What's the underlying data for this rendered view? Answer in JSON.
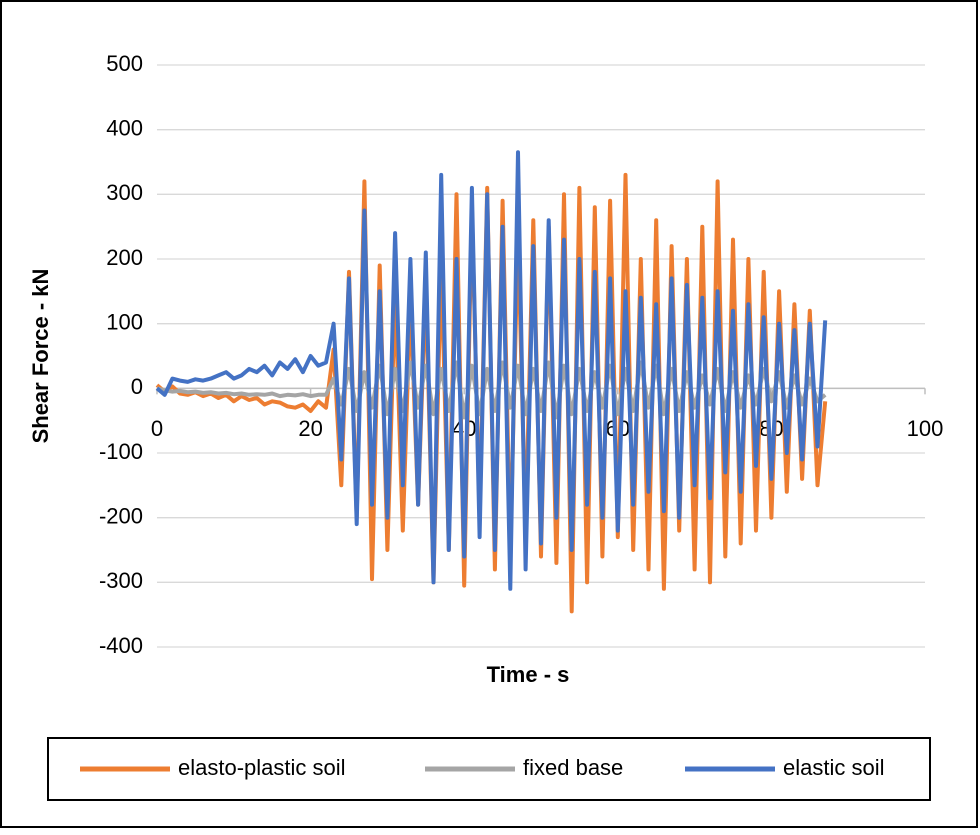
{
  "chart_data": {
    "type": "line",
    "ylabel": "Shear Force - kN",
    "xlabel": "Time - s",
    "xlim": [
      0,
      100
    ],
    "xticks": [
      0,
      20,
      40,
      60,
      80,
      100
    ],
    "ylim": [
      -400,
      500
    ],
    "yticks": [
      -400,
      -300,
      -200,
      -100,
      0,
      100,
      200,
      300,
      400,
      500
    ],
    "grid": true,
    "legend": "bottom",
    "x": [
      0,
      1,
      2,
      3,
      4,
      5,
      6,
      7,
      8,
      9,
      10,
      11,
      12,
      13,
      14,
      15,
      16,
      17,
      18,
      19,
      20,
      21,
      22,
      23,
      24,
      25,
      26,
      27,
      28,
      29,
      30,
      31,
      32,
      33,
      34,
      35,
      36,
      37,
      38,
      39,
      40,
      41,
      42,
      43,
      44,
      45,
      46,
      47,
      48,
      49,
      50,
      51,
      52,
      53,
      54,
      55,
      56,
      57,
      58,
      59,
      60,
      61,
      62,
      63,
      64,
      65,
      66,
      67,
      68,
      69,
      70,
      71,
      72,
      73,
      74,
      75,
      76,
      77,
      78,
      79,
      80,
      81,
      82,
      83,
      84,
      85,
      86,
      87
    ],
    "series": [
      {
        "name": "elasto-plastic soil",
        "color": "#ed7d31",
        "values": [
          5,
          -5,
          3,
          -8,
          -10,
          -6,
          -12,
          -8,
          -15,
          -10,
          -20,
          -12,
          -18,
          -15,
          -25,
          -20,
          -22,
          -28,
          -30,
          -25,
          -35,
          -20,
          -30,
          60,
          -150,
          180,
          -200,
          320,
          -295,
          190,
          -250,
          150,
          -220,
          140,
          -180,
          160,
          -300,
          200,
          -250,
          300,
          -305,
          280,
          -200,
          310,
          -280,
          290,
          -250,
          240,
          -220,
          260,
          -260,
          250,
          -270,
          300,
          -345,
          310,
          -300,
          280,
          -260,
          290,
          -230,
          330,
          -250,
          200,
          -280,
          260,
          -310,
          220,
          -220,
          200,
          -280,
          250,
          -300,
          320,
          -260,
          230,
          -240,
          200,
          -220,
          180,
          -200,
          150,
          -160,
          130,
          -140,
          120,
          -150,
          -20
        ]
      },
      {
        "name": "fixed base",
        "color": "#a5a5a5",
        "values": [
          0,
          -3,
          -5,
          -4,
          -6,
          -5,
          -7,
          -6,
          -8,
          -7,
          -9,
          -8,
          -10,
          -9,
          -10,
          -8,
          -12,
          -10,
          -11,
          -9,
          -12,
          -10,
          -10,
          15,
          -25,
          30,
          -35,
          25,
          -30,
          35,
          -40,
          30,
          -35,
          40,
          -30,
          35,
          -40,
          30,
          -35,
          40,
          -45,
          35,
          -40,
          30,
          -35,
          40,
          -30,
          35,
          -40,
          30,
          -35,
          40,
          -45,
          35,
          -40,
          30,
          -35,
          25,
          -30,
          35,
          -40,
          30,
          -35,
          40,
          -30,
          35,
          -40,
          30,
          -35,
          25,
          -30,
          20,
          -25,
          30,
          -35,
          25,
          -30,
          20,
          -25,
          30,
          -20,
          25,
          -30,
          20,
          -25,
          15,
          -20,
          -10
        ]
      },
      {
        "name": "elastic soil",
        "color": "#4472c4",
        "values": [
          0,
          -10,
          15,
          12,
          10,
          14,
          12,
          15,
          20,
          25,
          15,
          20,
          30,
          25,
          35,
          20,
          40,
          30,
          45,
          25,
          50,
          35,
          40,
          100,
          -110,
          170,
          -210,
          275,
          -180,
          150,
          -200,
          240,
          -150,
          200,
          -180,
          210,
          -300,
          330,
          -250,
          200,
          -260,
          310,
          -230,
          300,
          -250,
          250,
          -310,
          365,
          -280,
          220,
          -240,
          260,
          -200,
          230,
          -250,
          200,
          -180,
          180,
          -200,
          170,
          -220,
          150,
          -180,
          140,
          -160,
          130,
          -190,
          170,
          -200,
          160,
          -150,
          140,
          -170,
          150,
          -130,
          120,
          -160,
          130,
          -120,
          110,
          -140,
          100,
          -100,
          90,
          -110,
          100,
          -90,
          105
        ]
      }
    ]
  }
}
